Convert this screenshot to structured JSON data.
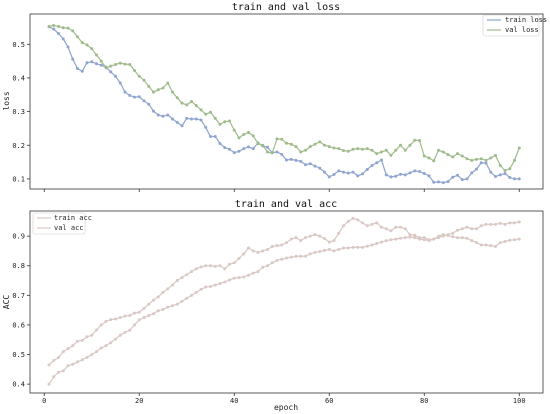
{
  "chart_data": [
    {
      "type": "line",
      "title": "train and val loss",
      "xlabel": "",
      "ylabel": "loss",
      "xlim": [
        -3,
        105
      ],
      "ylim": [
        0.07,
        0.59
      ],
      "yticks": [
        0.1,
        0.2,
        0.3,
        0.4,
        0.5
      ],
      "ytick_labels": [
        "0.1",
        "0.2",
        "0.3",
        "0.4",
        "0.5"
      ],
      "xticks": [
        0,
        20,
        40,
        60,
        80,
        100
      ],
      "xtick_labels": [],
      "legend_position": "top-right",
      "grid": false,
      "x_start": 1,
      "series": [
        {
          "name": "train loss",
          "color": "#8fa5cf",
          "values": [
            0.552,
            0.545,
            0.532,
            0.516,
            0.492,
            0.456,
            0.428,
            0.42,
            0.445,
            0.448,
            0.442,
            0.438,
            0.432,
            0.418,
            0.405,
            0.385,
            0.358,
            0.348,
            0.343,
            0.344,
            0.332,
            0.322,
            0.301,
            0.29,
            0.286,
            0.29,
            0.278,
            0.268,
            0.258,
            0.28,
            0.278,
            0.278,
            0.275,
            0.253,
            0.226,
            0.226,
            0.205,
            0.193,
            0.188,
            0.178,
            0.182,
            0.19,
            0.195,
            0.19,
            0.207,
            0.198,
            0.194,
            0.178,
            0.18,
            0.173,
            0.156,
            0.158,
            0.155,
            0.152,
            0.142,
            0.145,
            0.138,
            0.132,
            0.12,
            0.106,
            0.113,
            0.124,
            0.12,
            0.117,
            0.12,
            0.109,
            0.115,
            0.128,
            0.14,
            0.148,
            0.156,
            0.112,
            0.106,
            0.108,
            0.114,
            0.112,
            0.118,
            0.124,
            0.122,
            0.116,
            0.109,
            0.09,
            0.091,
            0.089,
            0.092,
            0.105,
            0.111,
            0.098,
            0.1,
            0.118,
            0.129,
            0.148,
            0.147,
            0.12,
            0.107,
            0.112,
            0.116,
            0.104,
            0.1,
            0.1
          ]
        },
        {
          "name": "val loss",
          "color": "#9fbb8c",
          "values": [
            0.553,
            0.556,
            0.553,
            0.549,
            0.548,
            0.54,
            0.522,
            0.505,
            0.498,
            0.487,
            0.468,
            0.45,
            0.43,
            0.435,
            0.44,
            0.444,
            0.441,
            0.44,
            0.422,
            0.405,
            0.393,
            0.375,
            0.358,
            0.365,
            0.37,
            0.385,
            0.358,
            0.341,
            0.325,
            0.32,
            0.33,
            0.318,
            0.305,
            0.292,
            0.298,
            0.28,
            0.262,
            0.27,
            0.272,
            0.245,
            0.222,
            0.232,
            0.238,
            0.228,
            0.205,
            0.2,
            0.18,
            0.177,
            0.219,
            0.218,
            0.206,
            0.203,
            0.196,
            0.18,
            0.185,
            0.196,
            0.203,
            0.21,
            0.2,
            0.196,
            0.192,
            0.19,
            0.184,
            0.182,
            0.188,
            0.19,
            0.188,
            0.19,
            0.185,
            0.175,
            0.18,
            0.185,
            0.17,
            0.185,
            0.2,
            0.185,
            0.2,
            0.215,
            0.214,
            0.168,
            0.162,
            0.154,
            0.185,
            0.18,
            0.172,
            0.165,
            0.175,
            0.168,
            0.16,
            0.155,
            0.158,
            0.16,
            0.155,
            0.162,
            0.17,
            0.14,
            0.125,
            0.13,
            0.155,
            0.192
          ]
        }
      ]
    },
    {
      "type": "line",
      "title": "train and val acc",
      "xlabel": "epoch",
      "ylabel": "ACC",
      "xlim": [
        -3,
        105
      ],
      "ylim": [
        0.37,
        0.985
      ],
      "yticks": [
        0.4,
        0.5,
        0.6,
        0.7,
        0.8,
        0.9
      ],
      "ytick_labels": [
        "0.4",
        "0.5",
        "0.6",
        "0.7",
        "0.8",
        "0.9"
      ],
      "xticks": [
        0,
        20,
        40,
        60,
        80,
        100
      ],
      "xtick_labels": [
        "0",
        "20",
        "40",
        "60",
        "80",
        "100"
      ],
      "legend_position": "top-left",
      "grid": false,
      "x_start": 1,
      "series": [
        {
          "name": "train acc",
          "color": "#d9c8c4",
          "values": [
            0.4,
            0.425,
            0.44,
            0.445,
            0.462,
            0.467,
            0.475,
            0.482,
            0.49,
            0.5,
            0.51,
            0.522,
            0.53,
            0.54,
            0.552,
            0.565,
            0.575,
            0.582,
            0.6,
            0.617,
            0.625,
            0.632,
            0.638,
            0.648,
            0.652,
            0.66,
            0.665,
            0.67,
            0.68,
            0.69,
            0.7,
            0.71,
            0.72,
            0.728,
            0.73,
            0.735,
            0.74,
            0.745,
            0.752,
            0.758,
            0.76,
            0.762,
            0.768,
            0.775,
            0.78,
            0.795,
            0.8,
            0.81,
            0.818,
            0.822,
            0.826,
            0.829,
            0.832,
            0.832,
            0.832,
            0.84,
            0.845,
            0.848,
            0.852,
            0.855,
            0.85,
            0.855,
            0.86,
            0.86,
            0.862,
            0.862,
            0.862,
            0.866,
            0.87,
            0.875,
            0.88,
            0.885,
            0.888,
            0.89,
            0.893,
            0.895,
            0.897,
            0.895,
            0.89,
            0.888,
            0.885,
            0.89,
            0.9,
            0.905,
            0.902,
            0.898,
            0.895,
            0.895,
            0.893,
            0.885,
            0.878,
            0.87,
            0.87,
            0.868,
            0.865,
            0.878,
            0.882,
            0.886,
            0.888,
            0.89
          ]
        },
        {
          "name": "val acc",
          "color": "#d9c8c4",
          "values": [
            0.465,
            0.48,
            0.49,
            0.51,
            0.52,
            0.53,
            0.545,
            0.548,
            0.56,
            0.565,
            0.583,
            0.6,
            0.612,
            0.618,
            0.62,
            0.625,
            0.63,
            0.632,
            0.64,
            0.643,
            0.656,
            0.67,
            0.684,
            0.695,
            0.71,
            0.722,
            0.735,
            0.75,
            0.76,
            0.77,
            0.78,
            0.79,
            0.796,
            0.8,
            0.8,
            0.798,
            0.8,
            0.79,
            0.805,
            0.81,
            0.825,
            0.84,
            0.86,
            0.85,
            0.845,
            0.85,
            0.855,
            0.865,
            0.868,
            0.87,
            0.878,
            0.89,
            0.895,
            0.885,
            0.895,
            0.9,
            0.905,
            0.9,
            0.892,
            0.88,
            0.885,
            0.91,
            0.935,
            0.95,
            0.96,
            0.955,
            0.945,
            0.935,
            0.94,
            0.945,
            0.93,
            0.925,
            0.918,
            0.93,
            0.93,
            0.925,
            0.905,
            0.903,
            0.895,
            0.895,
            0.888,
            0.89,
            0.895,
            0.9,
            0.905,
            0.91,
            0.92,
            0.925,
            0.93,
            0.925,
            0.925,
            0.935,
            0.94,
            0.94,
            0.94,
            0.943,
            0.94,
            0.945,
            0.945,
            0.948
          ]
        }
      ]
    }
  ]
}
